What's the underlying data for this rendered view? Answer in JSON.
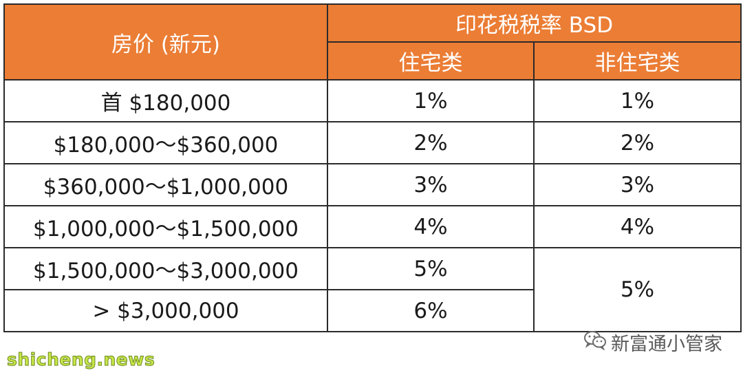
{
  "table": {
    "header": {
      "price_label": "房价 (新元)",
      "rate_label": "印花税税率 BSD",
      "residential_label": "住宅类",
      "non_residential_label": "非住宅类"
    },
    "rows": [
      {
        "price": "首 $180,000",
        "residential": "1%",
        "non_residential": "1%"
      },
      {
        "price": "$180,000～$360,000",
        "residential": "2%",
        "non_residential": "2%"
      },
      {
        "price": "$360,000～$1,000,000",
        "residential": "3%",
        "non_residential": "3%"
      },
      {
        "price": "$1,000,000～$1,500,000",
        "residential": "4%",
        "non_residential": "4%"
      },
      {
        "price": "$1,500,000～$3,000,000",
        "residential": "5%",
        "non_residential": "5%"
      },
      {
        "price": "> $3,000,000",
        "residential": "6%",
        "non_residential": ""
      }
    ]
  },
  "watermark": {
    "icon": "wechat-icon",
    "text": "新富通小管家"
  },
  "site_watermark": "shicheng.news",
  "colors": {
    "header_bg": "#eb7d35",
    "header_text": "#ffffff",
    "border": "#2a2a2a",
    "site_watermark": "#c8e64a"
  }
}
